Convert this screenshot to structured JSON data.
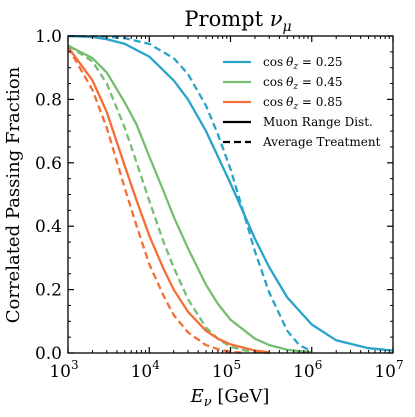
{
  "chart_data": {
    "type": "line",
    "title": "Prompt νμ",
    "title_main": "Prompt ",
    "title_symbol": "ν",
    "title_sub": "μ",
    "xlabel_symbol": "E",
    "xlabel_sub": "ν",
    "xlabel_unit": " [GeV]",
    "ylabel": "Correlated Passing Fraction",
    "xscale": "log",
    "xlim": [
      1000,
      10000000
    ],
    "ylim": [
      0.0,
      1.0
    ],
    "x_ticks": [
      {
        "value": 1000,
        "base": "10",
        "exp": "3"
      },
      {
        "value": 10000,
        "base": "10",
        "exp": "4"
      },
      {
        "value": 100000,
        "base": "10",
        "exp": "5"
      },
      {
        "value": 1000000,
        "base": "10",
        "exp": "6"
      },
      {
        "value": 10000000,
        "base": "10",
        "exp": "7"
      }
    ],
    "y_ticks": [
      {
        "value": 0.0,
        "label": "0.0"
      },
      {
        "value": 0.2,
        "label": "0.2"
      },
      {
        "value": 0.4,
        "label": "0.4"
      },
      {
        "value": 0.6,
        "label": "0.6"
      },
      {
        "value": 0.8,
        "label": "0.8"
      },
      {
        "value": 1.0,
        "label": "1.0"
      }
    ],
    "grid": false,
    "legend_position": "top-right",
    "legend": [
      {
        "kind": "color",
        "prefix": "cos",
        "theta": "θ",
        "sub": "z",
        "value": " = 0.25",
        "color": "#2aa3c8"
      },
      {
        "kind": "color",
        "prefix": "cos",
        "theta": "θ",
        "sub": "z",
        "value": " = 0.45",
        "color": "#77bd72"
      },
      {
        "kind": "color",
        "prefix": "cos",
        "theta": "θ",
        "sub": "z",
        "value": " = 0.85",
        "color": "#f46e38"
      },
      {
        "kind": "style",
        "label": "Muon Range Dist.",
        "dash": "solid"
      },
      {
        "kind": "style",
        "label": "Average Treatment",
        "dash": "dashed"
      }
    ],
    "series": [
      {
        "color": "#2aa3c8",
        "dash": "solid",
        "x": [
          1000,
          2000,
          3000,
          5000,
          10000,
          20000,
          30000,
          50000,
          100000,
          200000,
          300000,
          500000,
          1000000,
          2000000,
          5000000,
          10000000
        ],
        "y": [
          1.0,
          0.997,
          0.99,
          0.975,
          0.935,
          0.86,
          0.8,
          0.7,
          0.535,
          0.36,
          0.27,
          0.175,
          0.09,
          0.04,
          0.015,
          0.008
        ]
      },
      {
        "color": "#2aa3c8",
        "dash": "dashed",
        "x": [
          1000,
          3000,
          5000,
          10000,
          20000,
          30000,
          50000,
          70000,
          100000,
          150000,
          200000,
          300000,
          500000,
          700000,
          1000000
        ],
        "y": [
          1.0,
          0.998,
          0.993,
          0.975,
          0.93,
          0.88,
          0.78,
          0.69,
          0.58,
          0.43,
          0.32,
          0.19,
          0.07,
          0.025,
          0.005
        ]
      },
      {
        "color": "#77bd72",
        "dash": "solid",
        "x": [
          1000,
          2000,
          3000,
          5000,
          7000,
          10000,
          15000,
          20000,
          30000,
          50000,
          70000,
          100000,
          200000,
          300000,
          500000,
          1000000
        ],
        "y": [
          0.97,
          0.93,
          0.885,
          0.79,
          0.72,
          0.62,
          0.51,
          0.43,
          0.33,
          0.215,
          0.155,
          0.105,
          0.045,
          0.025,
          0.01,
          0.002
        ]
      },
      {
        "color": "#77bd72",
        "dash": "dashed",
        "x": [
          1000,
          2000,
          3000,
          5000,
          7000,
          10000,
          15000,
          20000,
          30000,
          50000,
          70000,
          100000,
          150000,
          200000,
          300000
        ],
        "y": [
          0.97,
          0.92,
          0.85,
          0.71,
          0.6,
          0.48,
          0.35,
          0.27,
          0.17,
          0.08,
          0.045,
          0.02,
          0.008,
          0.003,
          0.0
        ]
      },
      {
        "color": "#f46e38",
        "dash": "solid",
        "x": [
          1000,
          2000,
          3000,
          5000,
          7000,
          10000,
          15000,
          20000,
          30000,
          50000,
          70000,
          100000,
          200000,
          300000
        ],
        "y": [
          0.965,
          0.86,
          0.76,
          0.59,
          0.48,
          0.37,
          0.265,
          0.2,
          0.13,
          0.07,
          0.045,
          0.027,
          0.008,
          0.002
        ]
      },
      {
        "color": "#f46e38",
        "dash": "dashed",
        "x": [
          1000,
          2000,
          3000,
          5000,
          7000,
          10000,
          15000,
          20000,
          30000,
          50000,
          70000,
          100000,
          150000
        ],
        "y": [
          0.965,
          0.83,
          0.71,
          0.52,
          0.4,
          0.28,
          0.18,
          0.12,
          0.065,
          0.025,
          0.012,
          0.004,
          0.0
        ]
      }
    ]
  }
}
